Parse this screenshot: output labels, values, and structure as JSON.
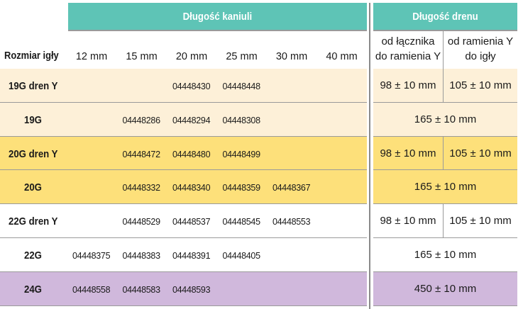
{
  "header": {
    "cannula_length": "Długość kaniuli",
    "tube_length": "Długość drenu",
    "needle_size": "Rozmiar igły",
    "lengths": [
      "12 mm",
      "15 mm",
      "20 mm",
      "25 mm",
      "30 mm",
      "40 mm"
    ],
    "tube_col1": [
      "od łącznika",
      "do ramienia Y"
    ],
    "tube_col2": [
      "od ramienia Y",
      "do igły"
    ]
  },
  "colors": {
    "teal": "#5ec4b6",
    "cream": "#fdf0d8",
    "yellow": "#fde07a",
    "white": "#ffffff",
    "purple": "#d0b8dc"
  },
  "rows": [
    {
      "label": "19G dren Y",
      "color": "cream",
      "codes": [
        "",
        "",
        "04448430",
        "04448448",
        "",
        ""
      ],
      "tube": [
        "98 ± 10 mm",
        "105 ± 10 mm"
      ]
    },
    {
      "label": "19G",
      "color": "cream",
      "codes": [
        "",
        "04448286",
        "04448294",
        "04448308",
        "",
        ""
      ],
      "tube": [
        "165 ± 10 mm"
      ]
    },
    {
      "label": "20G dren Y",
      "color": "yellow",
      "codes": [
        "",
        "04448472",
        "04448480",
        "04448499",
        "",
        ""
      ],
      "tube": [
        "98 ± 10 mm",
        "105 ± 10 mm"
      ]
    },
    {
      "label": "20G",
      "color": "yellow",
      "codes": [
        "",
        "04448332",
        "04448340",
        "04448359",
        "04448367",
        ""
      ],
      "tube": [
        "165 ± 10 mm"
      ]
    },
    {
      "label": "22G dren Y",
      "color": "white",
      "codes": [
        "",
        "04448529",
        "04448537",
        "04448545",
        "04448553",
        ""
      ],
      "tube": [
        "98 ± 10 mm",
        "105 ± 10 mm"
      ]
    },
    {
      "label": "22G",
      "color": "white",
      "codes": [
        "04448375",
        "04448383",
        "04448391",
        "04448405",
        "",
        ""
      ],
      "tube": [
        "165 ± 10 mm"
      ]
    },
    {
      "label": "24G",
      "color": "purple",
      "codes": [
        "04448558",
        "04448583",
        "04448593",
        "",
        "",
        ""
      ],
      "tube": [
        "450 ± 10 mm"
      ]
    }
  ]
}
